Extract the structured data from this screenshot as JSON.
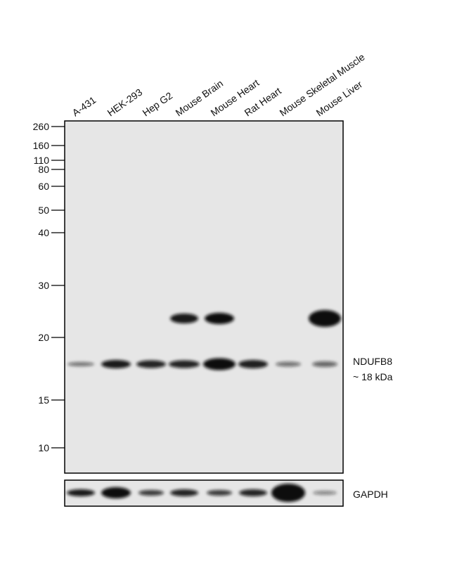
{
  "lanes": [
    "A-431",
    "HEK-293",
    "Hep G2",
    "Mouse Brain",
    "Mouse Heart",
    "Rat Heart",
    "Mouse Skeletal Muscle",
    "Mouse Liver"
  ],
  "markers": [
    "260",
    "160",
    "110",
    "80",
    "60",
    "50",
    "40",
    "30",
    "20",
    "15",
    "10"
  ],
  "band_labels": {
    "target": "NDUFB8",
    "size": "~ 18 kDa",
    "loading_control": "GAPDH"
  }
}
